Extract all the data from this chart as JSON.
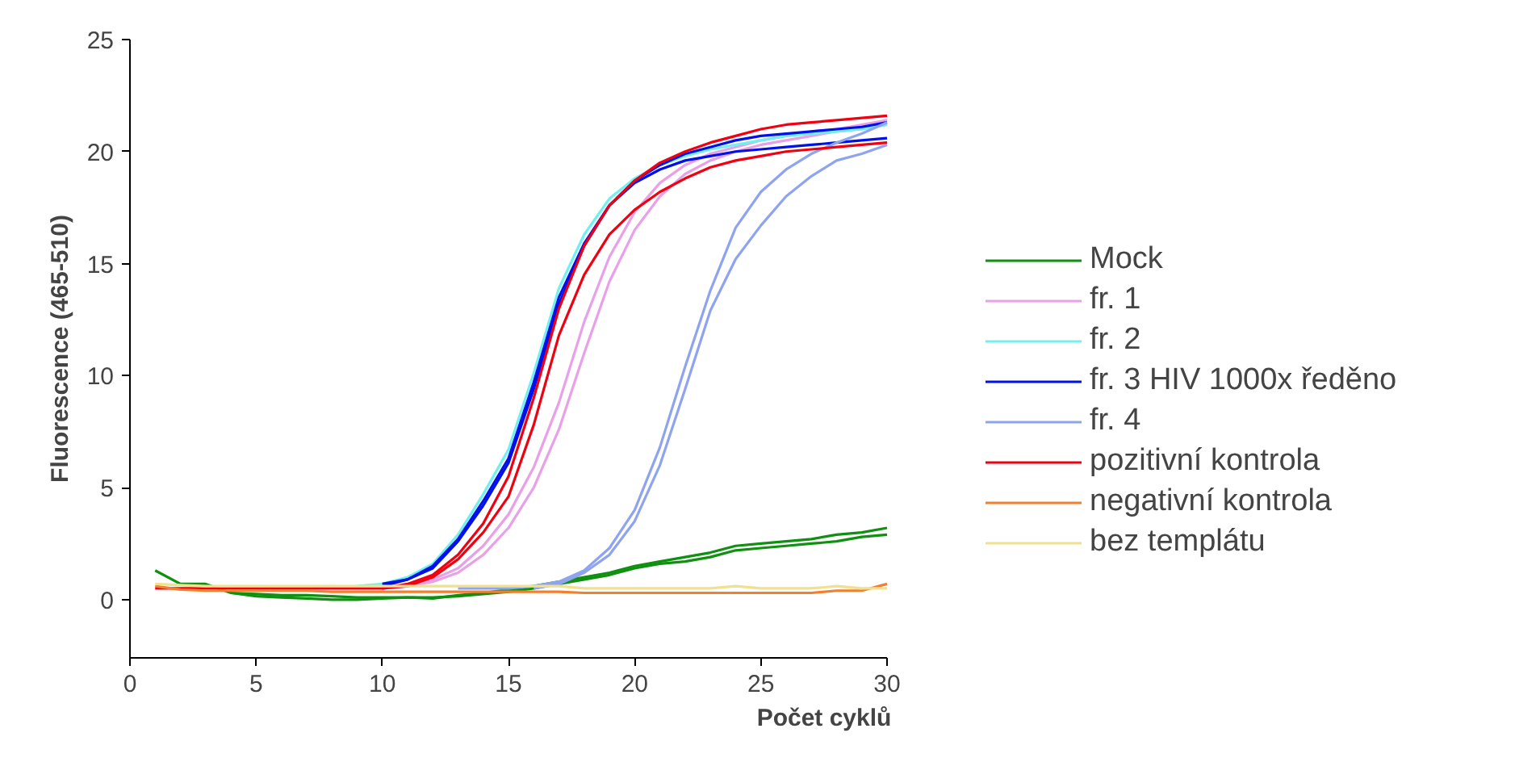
{
  "chart_data": {
    "type": "line",
    "xlabel": "Počet cyklů",
    "ylabel": "Fluorescence (465-510)",
    "x": [
      1,
      2,
      3,
      4,
      5,
      6,
      7,
      8,
      9,
      10,
      11,
      12,
      13,
      14,
      15,
      16,
      17,
      18,
      19,
      20,
      21,
      22,
      23,
      24,
      25,
      26,
      27,
      28,
      29,
      30
    ],
    "xlim": [
      0,
      30
    ],
    "xticks": [
      0,
      5,
      10,
      15,
      20,
      25,
      30
    ],
    "ylim": [
      -2.6,
      25
    ],
    "yticks": [
      0,
      5,
      10,
      15,
      20,
      25
    ],
    "grid": false,
    "legend": "right",
    "marker": "none",
    "line_style": "solid",
    "series": [
      {
        "name": "Mock",
        "color": "#109010",
        "values": [
          1.3,
          0.7,
          0.7,
          0.3,
          0.25,
          0.2,
          0.2,
          0.15,
          0.1,
          0.1,
          0.1,
          0.05,
          0.2,
          0.3,
          0.45,
          0.6,
          0.8,
          1.0,
          1.2,
          1.5,
          1.7,
          1.9,
          2.1,
          2.4,
          2.5,
          2.6,
          2.7,
          2.9,
          3.0,
          3.2
        ]
      },
      {
        "color": "#109010",
        "values": [
          null,
          null,
          null,
          0.3,
          0.15,
          0.1,
          0.05,
          0.0,
          0.0,
          0.05,
          0.1,
          0.1,
          0.15,
          0.25,
          0.35,
          0.5,
          0.7,
          0.9,
          1.1,
          1.4,
          1.6,
          1.7,
          1.9,
          2.2,
          2.3,
          2.4,
          2.5,
          2.6,
          2.8,
          2.9
        ]
      },
      {
        "name": "fr. 1",
        "color": "#e8a0e8",
        "values": [
          null,
          null,
          null,
          null,
          null,
          null,
          null,
          null,
          null,
          0.5,
          0.6,
          0.8,
          1.2,
          2.0,
          3.2,
          5.0,
          7.6,
          11.0,
          14.2,
          16.5,
          18.0,
          19.0,
          19.6,
          20.0,
          20.3,
          20.5,
          20.7,
          20.9,
          21.0,
          21.2
        ]
      },
      {
        "color": "#e8a0e8",
        "values": [
          null,
          null,
          null,
          null,
          null,
          null,
          null,
          null,
          null,
          0.5,
          0.6,
          0.9,
          1.4,
          2.4,
          3.8,
          5.9,
          8.8,
          12.4,
          15.3,
          17.3,
          18.6,
          19.4,
          19.9,
          20.2,
          20.5,
          20.7,
          20.9,
          21.0,
          21.2,
          21.4
        ]
      },
      {
        "name": "fr. 2",
        "color": "#70f0f0",
        "values": [
          null,
          null,
          null,
          null,
          null,
          null,
          null,
          null,
          0.6,
          0.7,
          1.0,
          1.6,
          2.9,
          4.7,
          6.7,
          10.1,
          13.9,
          16.3,
          17.9,
          18.8,
          19.4,
          19.8,
          20.1,
          20.3,
          20.5,
          20.7,
          20.8,
          20.9,
          21.0,
          21.2
        ]
      },
      {
        "name": "fr. 3 HIV 1000x ředěno",
        "color": "#0010e8",
        "values": [
          null,
          null,
          null,
          null,
          null,
          null,
          null,
          null,
          null,
          0.6,
          0.9,
          1.5,
          2.7,
          4.4,
          6.3,
          9.7,
          13.5,
          15.9,
          17.6,
          18.6,
          19.2,
          19.6,
          19.8,
          20.0,
          20.1,
          20.2,
          20.3,
          20.4,
          20.5,
          20.6
        ]
      },
      {
        "color": "#0010e8",
        "values": [
          null,
          null,
          null,
          null,
          null,
          null,
          null,
          null,
          null,
          0.7,
          0.9,
          1.4,
          2.6,
          4.2,
          6.1,
          9.4,
          13.2,
          15.8,
          17.6,
          18.7,
          19.4,
          19.9,
          20.2,
          20.5,
          20.7,
          20.8,
          20.9,
          21.0,
          21.1,
          21.3
        ]
      },
      {
        "name": "fr. 4",
        "color": "#8fa4f0",
        "values": [
          null,
          null,
          null,
          null,
          null,
          null,
          null,
          null,
          null,
          null,
          null,
          null,
          0.5,
          0.5,
          0.5,
          0.6,
          0.8,
          1.3,
          2.3,
          4.0,
          6.8,
          10.4,
          13.8,
          16.6,
          18.2,
          19.2,
          19.9,
          20.4,
          20.8,
          21.3
        ]
      },
      {
        "color": "#8fa4f0",
        "values": [
          null,
          null,
          null,
          null,
          null,
          null,
          null,
          null,
          null,
          null,
          null,
          null,
          null,
          null,
          null,
          0.5,
          0.7,
          1.2,
          2.0,
          3.5,
          6.0,
          9.4,
          12.9,
          15.2,
          16.7,
          18.0,
          18.9,
          19.6,
          19.9,
          20.3
        ]
      },
      {
        "name": "pozitivní kontrola",
        "color": "#f00010",
        "values": [
          0.5,
          0.5,
          0.5,
          0.5,
          0.5,
          0.5,
          0.5,
          0.5,
          0.5,
          0.5,
          0.7,
          1.1,
          2.0,
          3.4,
          5.5,
          9.0,
          13.0,
          15.8,
          17.6,
          18.7,
          19.5,
          20.0,
          20.4,
          20.7,
          21.0,
          21.2,
          21.3,
          21.4,
          21.5,
          21.6
        ]
      },
      {
        "color": "#f00010",
        "values": [
          null,
          null,
          null,
          null,
          null,
          null,
          null,
          null,
          null,
          0.5,
          0.6,
          1.0,
          1.8,
          3.0,
          4.6,
          7.8,
          11.8,
          14.5,
          16.3,
          17.4,
          18.2,
          18.8,
          19.3,
          19.6,
          19.8,
          20.0,
          20.1,
          20.2,
          20.3,
          20.4
        ]
      },
      {
        "name": "negativní kontrola",
        "color": "#f08030",
        "values": [
          0.6,
          0.45,
          0.4,
          0.4,
          0.4,
          0.4,
          0.4,
          0.35,
          0.35,
          0.35,
          0.35,
          0.35,
          0.35,
          0.35,
          0.35,
          0.35,
          0.35,
          0.3,
          0.3,
          0.3,
          0.3,
          0.3,
          0.3,
          0.3,
          0.3,
          0.3,
          0.3,
          0.4,
          0.4,
          0.7
        ]
      },
      {
        "name": "bez templátu",
        "color": "#f0e090",
        "values": [
          0.7,
          0.65,
          0.6,
          0.6,
          0.6,
          0.6,
          0.6,
          0.6,
          0.6,
          0.6,
          0.6,
          0.6,
          0.6,
          0.6,
          0.6,
          0.6,
          0.6,
          0.5,
          0.5,
          0.5,
          0.5,
          0.5,
          0.5,
          0.6,
          0.5,
          0.5,
          0.5,
          0.6,
          0.5,
          0.5
        ]
      }
    ]
  }
}
